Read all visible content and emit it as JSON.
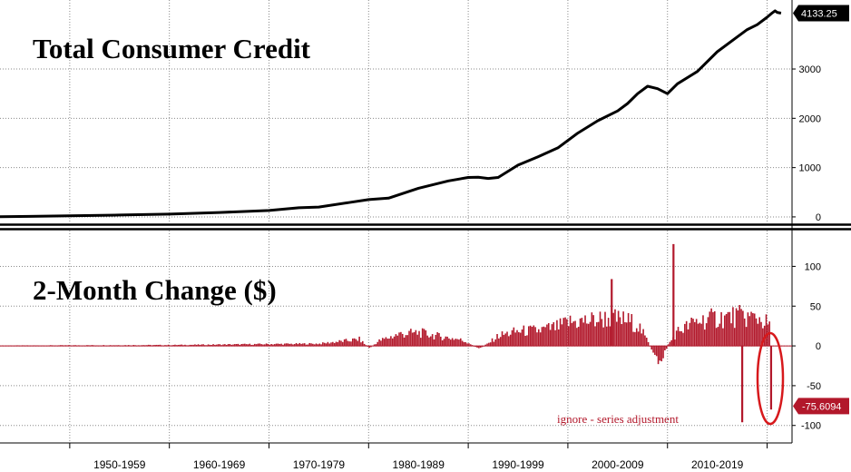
{
  "chart_data": [
    {
      "type": "line",
      "title": "Total Consumer Credit",
      "x_unit": "year",
      "x": [
        1943,
        1946,
        1950,
        1955,
        1960,
        1965,
        1970,
        1973,
        1975,
        1978,
        1980,
        1982,
        1985,
        1988,
        1990,
        1991,
        1992,
        1993,
        1995,
        1997,
        1999,
        2001,
        2003,
        2005,
        2006,
        2007,
        2008,
        2009,
        2010,
        2011,
        2013,
        2015,
        2017,
        2018,
        2019,
        2020,
        2020.4,
        2020.8,
        2021,
        2021.4
      ],
      "values": [
        5,
        10,
        22,
        38,
        56,
        90,
        130,
        185,
        200,
        290,
        350,
        380,
        580,
        730,
        800,
        805,
        780,
        800,
        1050,
        1220,
        1400,
        1700,
        1950,
        2150,
        2300,
        2500,
        2650,
        2600,
        2500,
        2700,
        2950,
        3350,
        3650,
        3800,
        3900,
        4050,
        4120,
        4180,
        4150,
        4133.25
      ],
      "ylim": [
        -130,
        4400
      ],
      "yticks": [
        0,
        1000,
        2000,
        3000
      ],
      "grid": true,
      "last_value_label": "4133.25",
      "line_color": "#000000"
    },
    {
      "type": "bar",
      "title": "2-Month Change ($)",
      "x_unit": "year",
      "ylim": [
        -122,
        145
      ],
      "yticks": [
        100,
        50,
        0,
        -50,
        -100
      ],
      "grid": true,
      "bar_color": "#b2182b",
      "envelope": [
        [
          1943,
          0.5
        ],
        [
          1950,
          0.8
        ],
        [
          1960,
          1.2
        ],
        [
          1970,
          2.5
        ],
        [
          1975,
          3
        ],
        [
          1977,
          6
        ],
        [
          1979,
          9
        ],
        [
          1980,
          -3
        ],
        [
          1981,
          7
        ],
        [
          1983,
          16
        ],
        [
          1985,
          18
        ],
        [
          1987,
          13
        ],
        [
          1989,
          9
        ],
        [
          1990,
          4
        ],
        [
          1991,
          -4
        ],
        [
          1992,
          4
        ],
        [
          1993,
          14
        ],
        [
          1995,
          20
        ],
        [
          1997,
          21
        ],
        [
          1999,
          26
        ],
        [
          2000,
          32
        ],
        [
          2002,
          34
        ],
        [
          2004,
          38
        ],
        [
          2006,
          34
        ],
        [
          2007,
          28
        ],
        [
          2008,
          5
        ],
        [
          2008.5,
          -12
        ],
        [
          2009,
          -22
        ],
        [
          2009.5,
          -14
        ],
        [
          2010,
          2
        ],
        [
          2011,
          20
        ],
        [
          2013,
          34
        ],
        [
          2015,
          38
        ],
        [
          2017,
          40
        ],
        [
          2019,
          38
        ],
        [
          2020,
          30
        ]
      ],
      "spikes": [
        [
          2004.3,
          84
        ],
        [
          2010.5,
          128
        ],
        [
          2017.4,
          -96
        ],
        [
          2020.3,
          -80
        ]
      ],
      "last_value_label": "-75.6094",
      "annotation": "ignore - series adjustment"
    }
  ],
  "x_axis": {
    "labels": [
      "1950-1959",
      "1960-1969",
      "1970-1979",
      "1980-1989",
      "1990-1999",
      "2000-2009",
      "2010-2019"
    ]
  }
}
